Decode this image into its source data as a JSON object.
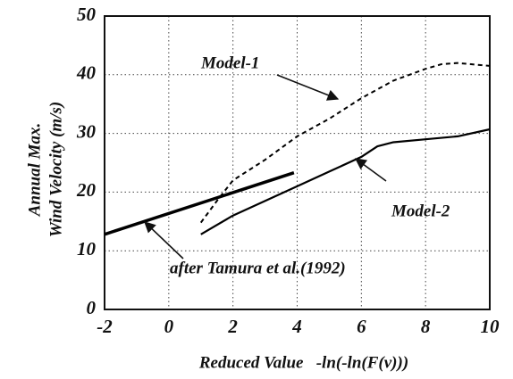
{
  "chart_data": {
    "type": "line",
    "xlabel": "Reduced Value   -ln(-ln(F(v)))",
    "ylabel": [
      "Annual Max.",
      "Wind Velocity (m/s)"
    ],
    "xlim": [
      -2,
      10
    ],
    "ylim": [
      0,
      50
    ],
    "xticks": [
      -2,
      0,
      2,
      4,
      6,
      8,
      10
    ],
    "yticks": [
      0,
      10,
      20,
      30,
      40,
      50
    ],
    "grid": true,
    "series": [
      {
        "name": "Model-1",
        "color": "#000000",
        "dash": true,
        "width": 2,
        "x": [
          1,
          1.5,
          2,
          3,
          4,
          5,
          6,
          7,
          8,
          8.5,
          9,
          10
        ],
        "values": [
          14.8,
          18.5,
          22,
          25.5,
          29.5,
          32.5,
          36,
          39,
          41,
          41.8,
          42,
          41.5
        ]
      },
      {
        "name": "Model-2",
        "color": "#000000",
        "dash": false,
        "width": 2.2,
        "x": [
          1,
          2,
          4,
          5,
          6,
          6.5,
          7,
          8,
          9,
          10
        ],
        "values": [
          12.8,
          16,
          21,
          23.5,
          26,
          27.8,
          28.5,
          29,
          29.5,
          30.7
        ]
      },
      {
        "name": "after Tamura et al.(1992)",
        "color": "#000000",
        "dash": false,
        "width": 3.5,
        "x": [
          -2,
          3.9
        ],
        "values": [
          12.8,
          23.3
        ]
      }
    ]
  }
}
